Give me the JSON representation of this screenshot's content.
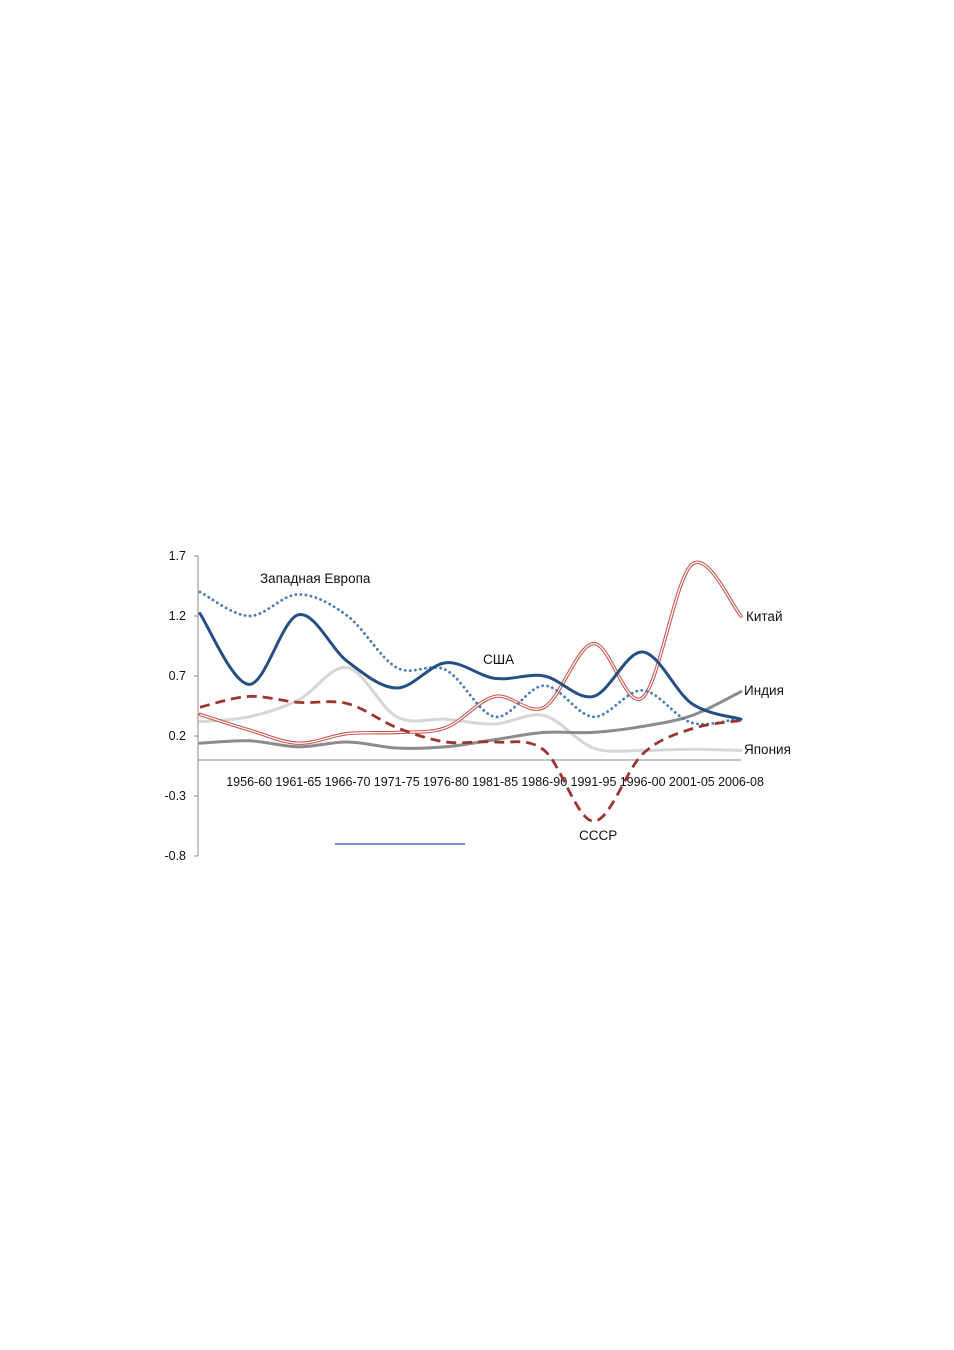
{
  "chart_data": {
    "type": "line",
    "title": "",
    "xlabel": "",
    "ylabel": "",
    "ylim": [
      -0.8,
      1.7
    ],
    "y_ticks": [
      "1.7",
      "1.2",
      "0.7",
      "0.2",
      "-0.3",
      "-0.8"
    ],
    "categories": [
      "",
      "1956-60",
      "1961-65",
      "1966-70",
      "1971-75",
      "1976-80",
      "1981-85",
      "1986-90",
      "1991-95",
      "1996-00",
      "2001-05",
      "2006-08"
    ],
    "grid": false,
    "legend": "none (series labelled directly on the chart)",
    "series": [
      {
        "name": "Западная Европа",
        "color": "#4a7ab5",
        "style": "dotted",
        "values": [
          1.4,
          1.2,
          1.38,
          1.2,
          0.77,
          0.75,
          0.36,
          0.62,
          0.36,
          0.58,
          0.31,
          0.35
        ]
      },
      {
        "name": "США",
        "color": "#244f82",
        "style": "solid-thick",
        "values": [
          1.22,
          0.63,
          1.21,
          0.82,
          0.6,
          0.81,
          0.68,
          0.7,
          0.53,
          0.9,
          0.47,
          0.34
        ]
      },
      {
        "name": "Китай",
        "color": "#c8504b",
        "style": "double-line",
        "values": [
          0.38,
          0.25,
          0.14,
          0.22,
          0.23,
          0.27,
          0.53,
          0.44,
          0.97,
          0.52,
          1.63,
          1.2
        ]
      },
      {
        "name": "Индия",
        "color": "#8c8c8c",
        "style": "solid-thick",
        "values": [
          0.14,
          0.16,
          0.11,
          0.15,
          0.1,
          0.11,
          0.17,
          0.23,
          0.23,
          0.28,
          0.37,
          0.57
        ]
      },
      {
        "name": "Япония",
        "color": "#d6d6d6",
        "style": "solid-thick",
        "values": [
          0.32,
          0.36,
          0.5,
          0.77,
          0.36,
          0.34,
          0.3,
          0.37,
          0.1,
          0.08,
          0.09,
          0.08
        ]
      },
      {
        "name": "СССР",
        "color": "#9b3530",
        "style": "dashed",
        "values": [
          0.44,
          0.53,
          0.48,
          0.47,
          0.27,
          0.15,
          0.15,
          0.08,
          -0.51,
          0.05,
          0.26,
          0.33
        ]
      }
    ]
  },
  "decor": {
    "link_line_color": "#2c4fa8"
  }
}
